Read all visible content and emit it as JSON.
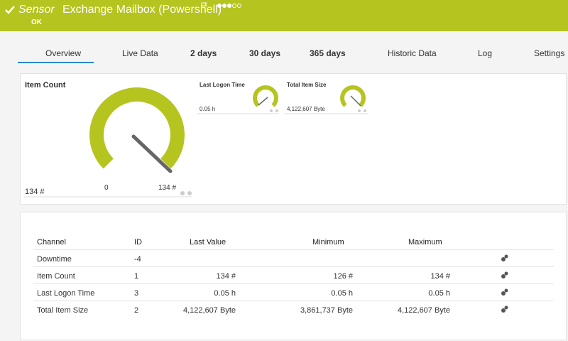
{
  "header": {
    "type_label": "Sensor",
    "title": "Exchange Mailbox (Powershell)",
    "status": "OK"
  },
  "tabs": [
    "Overview",
    "Live Data",
    "2 days",
    "30 days",
    "365 days",
    "Historic Data",
    "Log",
    "Settings"
  ],
  "gauges": [
    {
      "label": "Item Count",
      "value": "134 #",
      "min": "0",
      "max": "134 #"
    },
    {
      "label": "Last Logon Time",
      "value": "0.05 h"
    },
    {
      "label": "Total Item Size",
      "value": "4,122,607 Byte"
    }
  ],
  "table": {
    "columns": [
      "Channel",
      "ID",
      "Last Value",
      "Minimum",
      "Maximum"
    ],
    "rows": [
      {
        "channel": "Downtime",
        "id": "-4"
      },
      {
        "channel": "Item Count",
        "id": "1",
        "last": "134 #",
        "min": "126 #",
        "max": "134 #"
      },
      {
        "channel": "Last Logon Time",
        "id": "3",
        "last": "0.05 h",
        "min": "0.05 h",
        "max": "0.05 h"
      },
      {
        "channel": "Total Item Size",
        "id": "2",
        "last": "4,122,607 Byte",
        "min": "3,861,737 Byte",
        "max": "4,122,607 Byte"
      }
    ]
  }
}
